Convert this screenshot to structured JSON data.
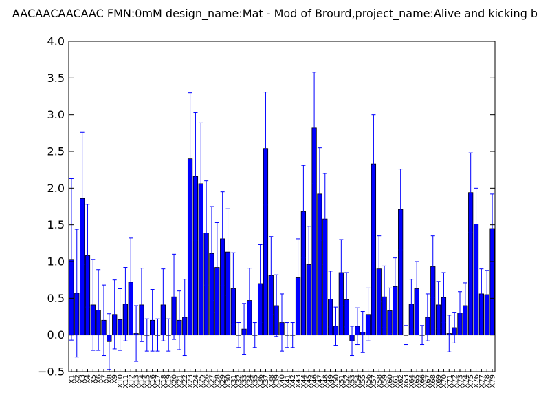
{
  "chart_data": {
    "type": "bar",
    "title": "AACAACAACAAC  FMN:0mM  design_name:Mat - Mod of Brourd,project_name:Alive and kicking b",
    "xlabel": "",
    "ylabel": "",
    "ylim": [
      -0.5,
      4.0
    ],
    "yticks": [
      "−0.5",
      "0.0",
      "0.5",
      "1.0",
      "1.5",
      "2.0",
      "2.5",
      "3.0",
      "3.5",
      "4.0"
    ],
    "categories": [
      "X1",
      "X2",
      "X3",
      "X4",
      "X5",
      "X6",
      "X7",
      "X8",
      "X9",
      "X10",
      "X11",
      "X12",
      "X13",
      "X14",
      "X15",
      "X16",
      "X17",
      "X18",
      "X19",
      "X20",
      "X21",
      "X22",
      "X23",
      "X24",
      "X25",
      "X26",
      "X27",
      "X28",
      "X29",
      "X30",
      "X31",
      "X32",
      "X33",
      "X34",
      "X35",
      "X36",
      "X37",
      "X38",
      "X39",
      "X40",
      "X41",
      "X42",
      "X43",
      "X44",
      "X45",
      "X46",
      "X47",
      "X48",
      "X49",
      "X50",
      "X51",
      "X52",
      "X53",
      "X54",
      "X55",
      "X56",
      "X57",
      "X58",
      "X59",
      "X60",
      "X61",
      "X62",
      "X63",
      "X64",
      "X65",
      "X66",
      "X67",
      "X68",
      "X69",
      "X70",
      "X71",
      "X72",
      "X73",
      "X74",
      "X75",
      "X76",
      "X77",
      "X78",
      "X79"
    ],
    "values": [
      1.03,
      0.57,
      1.86,
      1.08,
      0.41,
      0.34,
      0.2,
      -0.09,
      0.28,
      0.21,
      0.42,
      0.72,
      0.02,
      0.41,
      0.0,
      0.2,
      0.0,
      0.41,
      0.0,
      0.52,
      0.2,
      0.24,
      2.4,
      2.16,
      2.06,
      1.39,
      1.11,
      0.92,
      1.31,
      1.13,
      0.63,
      0.0,
      0.08,
      0.47,
      0.0,
      0.7,
      2.54,
      0.81,
      0.4,
      0.17,
      0.0,
      0.0,
      0.78,
      1.68,
      0.96,
      2.82,
      1.92,
      1.58,
      0.49,
      0.12,
      0.85,
      0.48,
      -0.08,
      0.12,
      0.04,
      0.28,
      2.33,
      0.9,
      0.52,
      0.33,
      0.66,
      1.71,
      0.0,
      0.42,
      0.63,
      0.0,
      0.24,
      0.93,
      0.41,
      0.51,
      0.02,
      0.1,
      0.3,
      0.4,
      1.94,
      1.51,
      0.56,
      0.55,
      1.45
    ],
    "errors": [
      1.1,
      0.87,
      0.9,
      0.7,
      0.62,
      0.55,
      0.48,
      0.38,
      0.47,
      0.42,
      0.5,
      0.6,
      0.38,
      0.5,
      0.22,
      0.42,
      0.22,
      0.49,
      0.22,
      0.58,
      0.4,
      0.52,
      0.9,
      0.87,
      0.83,
      0.71,
      0.64,
      0.61,
      0.64,
      0.59,
      0.49,
      0.17,
      0.35,
      0.44,
      0.17,
      0.53,
      0.77,
      0.53,
      0.42,
      0.39,
      0.17,
      0.17,
      0.53,
      0.63,
      0.52,
      0.76,
      0.63,
      0.62,
      0.38,
      0.26,
      0.45,
      0.37,
      0.2,
      0.25,
      0.28,
      0.36,
      0.67,
      0.45,
      0.42,
      0.31,
      0.39,
      0.55,
      0.13,
      0.34,
      0.37,
      0.13,
      0.32,
      0.42,
      0.32,
      0.34,
      0.25,
      0.21,
      0.29,
      0.31,
      0.54,
      0.49,
      0.34,
      0.33,
      0.47
    ],
    "bar_color": "#0000ff",
    "error_color": "#0000ff",
    "grid": false,
    "legend": "none"
  }
}
